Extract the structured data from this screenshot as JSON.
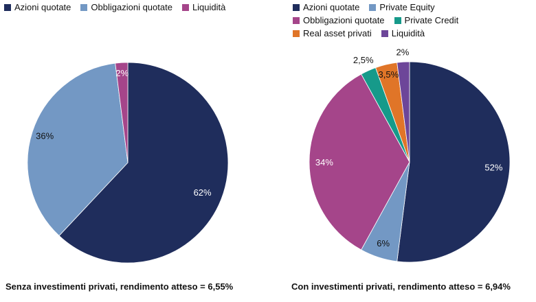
{
  "chart_data": [
    {
      "type": "pie",
      "title": "Senza investimenti privati, rendimento atteso = 6,55%",
      "legend_placement": "top-left",
      "slices": [
        {
          "label": "Azioni quotate",
          "value": 62,
          "display": "62%",
          "color": "#1f2d5c"
        },
        {
          "label": "Obbligazioni quotate",
          "value": 36,
          "display": "36%",
          "color": "#7398c4"
        },
        {
          "label": "Liquidità",
          "value": 2,
          "display": "2%",
          "color": "#a5458a"
        }
      ]
    },
    {
      "type": "pie",
      "title": "Con investimenti privati, rendimento atteso = 6,94%",
      "legend_placement": "top",
      "slices": [
        {
          "label": "Azioni quotate",
          "value": 52,
          "display": "52%",
          "color": "#1f2d5c"
        },
        {
          "label": "Private Equity",
          "value": 6,
          "display": "6%",
          "color": "#7398c4"
        },
        {
          "label": "Obbligazioni quotate",
          "value": 34,
          "display": "34%",
          "color": "#a5458a"
        },
        {
          "label": "Private Credit",
          "value": 2.5,
          "display": "2,5%",
          "color": "#169a8a"
        },
        {
          "label": "Real asset privati",
          "value": 3.5,
          "display": "3,5%",
          "color": "#e07528"
        },
        {
          "label": "Liquidità",
          "value": 2,
          "display": "2%",
          "color": "#6d4699"
        }
      ]
    }
  ]
}
